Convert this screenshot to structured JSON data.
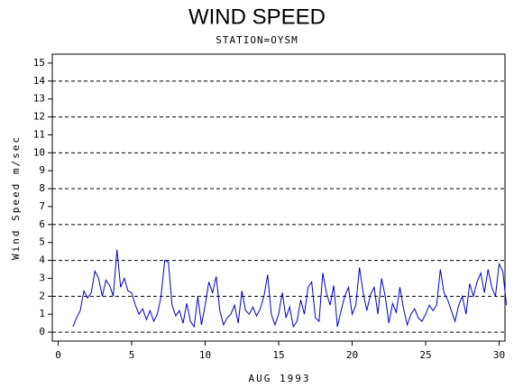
{
  "chart_data": {
    "type": "line",
    "title": "WIND SPEED",
    "subtitle": "STATION=OYSM",
    "x_label": "AUG 1993",
    "y_label": "Wind Speed m/sec",
    "xlim": [
      -0.4,
      30.4
    ],
    "xticks": [
      0,
      5,
      10,
      15,
      20,
      25,
      30
    ],
    "ylim": [
      -0.5,
      15.5
    ],
    "yticks": [
      0,
      1,
      2,
      3,
      4,
      5,
      6,
      7,
      8,
      9,
      10,
      11,
      12,
      13,
      14,
      15
    ],
    "grid": true,
    "series": [
      {
        "color": "#0000cc",
        "x": [
          1,
          1.25,
          1.5,
          1.75,
          2,
          2.25,
          2.5,
          2.75,
          3,
          3.25,
          3.5,
          3.75,
          4,
          4.25,
          4.5,
          4.75,
          5,
          5.25,
          5.5,
          5.75,
          6,
          6.25,
          6.5,
          6.75,
          7,
          7.25,
          7.5,
          7.75,
          8,
          8.25,
          8.5,
          8.75,
          9,
          9.25,
          9.5,
          9.75,
          10,
          10.25,
          10.5,
          10.75,
          11,
          11.25,
          11.5,
          11.75,
          12,
          12.25,
          12.5,
          12.75,
          13,
          13.25,
          13.5,
          13.75,
          14,
          14.25,
          14.5,
          14.75,
          15,
          15.25,
          15.5,
          15.75,
          16,
          16.25,
          16.5,
          16.75,
          17,
          17.25,
          17.5,
          17.75,
          18,
          18.25,
          18.5,
          18.75,
          19,
          19.25,
          19.5,
          19.75,
          20,
          20.25,
          20.5,
          20.75,
          21,
          21.25,
          21.5,
          21.75,
          22,
          22.25,
          22.5,
          22.75,
          23,
          23.25,
          23.5,
          23.75,
          24,
          24.25,
          24.5,
          24.75,
          25,
          25.25,
          25.5,
          25.75,
          26,
          26.25,
          26.5,
          26.75,
          27,
          27.25,
          27.5,
          27.75,
          28,
          28.25,
          28.5,
          28.75,
          29,
          29.25,
          29.5,
          29.75,
          30,
          30.25,
          30.5
        ],
        "values": [
          0.3,
          0.8,
          1.2,
          2.3,
          1.9,
          2.2,
          3.4,
          3.0,
          2.0,
          2.9,
          2.6,
          2.0,
          4.6,
          2.5,
          3.0,
          2.3,
          2.2,
          1.5,
          1.0,
          1.3,
          0.7,
          1.2,
          0.6,
          1.0,
          2.0,
          4.0,
          3.9,
          1.5,
          0.9,
          1.2,
          0.5,
          1.6,
          0.6,
          0.3,
          2.0,
          0.4,
          1.5,
          2.8,
          2.2,
          3.1,
          1.2,
          0.4,
          0.8,
          1.0,
          1.5,
          0.5,
          2.3,
          1.2,
          1.0,
          1.4,
          0.9,
          1.3,
          2.0,
          3.2,
          1.0,
          0.4,
          1.0,
          2.2,
          0.8,
          1.4,
          0.3,
          0.6,
          1.8,
          1.0,
          2.5,
          2.8,
          0.8,
          0.6,
          3.3,
          2.2,
          1.5,
          2.6,
          0.3,
          1.2,
          2.0,
          2.5,
          1.0,
          1.5,
          3.6,
          2.2,
          1.2,
          2.1,
          2.5,
          1.0,
          3.0,
          2.0,
          0.5,
          1.6,
          1.1,
          2.5,
          1.3,
          0.4,
          1.0,
          1.3,
          0.8,
          0.6,
          1.0,
          1.5,
          1.2,
          1.5,
          3.5,
          2.2,
          1.8,
          1.2,
          0.6,
          1.5,
          2.0,
          1.0,
          2.7,
          2.0,
          2.8,
          3.3,
          2.2,
          3.5,
          2.5,
          2.0,
          3.8,
          3.4,
          1.5
        ]
      }
    ]
  }
}
